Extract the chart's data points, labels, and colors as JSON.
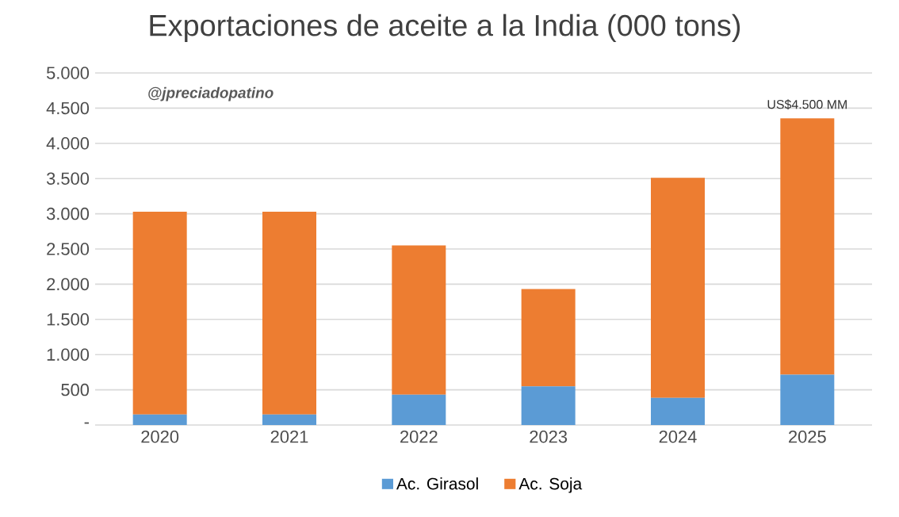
{
  "chart_data": {
    "type": "bar",
    "title": "Exportaciones de aceite a la India (000 tons)",
    "categories": [
      "2020",
      "2021",
      "2022",
      "2023",
      "2024",
      "2025"
    ],
    "stacked": true,
    "series": [
      {
        "name": "Ac. Girasol",
        "color": "#5b9bd5",
        "values": [
          150,
          150,
          430,
          550,
          385,
          715
        ]
      },
      {
        "name": "Ac. Soja",
        "color": "#ed7d31",
        "values": [
          2880,
          2880,
          2120,
          1380,
          3125,
          3640
        ]
      }
    ],
    "ylim": [
      0,
      5000
    ],
    "yticks": [
      {
        "value": 0,
        "label": "-"
      },
      {
        "value": 500,
        "label": "500"
      },
      {
        "value": 1000,
        "label": "1.000"
      },
      {
        "value": 1500,
        "label": "1.500"
      },
      {
        "value": 2000,
        "label": "2.000"
      },
      {
        "value": 2500,
        "label": "2.500"
      },
      {
        "value": 3000,
        "label": "3.000"
      },
      {
        "value": 3500,
        "label": "3.500"
      },
      {
        "value": 4000,
        "label": "4.000"
      },
      {
        "value": 4500,
        "label": "4.500"
      },
      {
        "value": 5000,
        "label": "5.000"
      }
    ],
    "grid": "y",
    "legend": "bottom",
    "annotations": [
      "@jpreciadopatino",
      {
        "text": "US$4.500 MM",
        "x": "2025",
        "y": 4355
      }
    ]
  }
}
